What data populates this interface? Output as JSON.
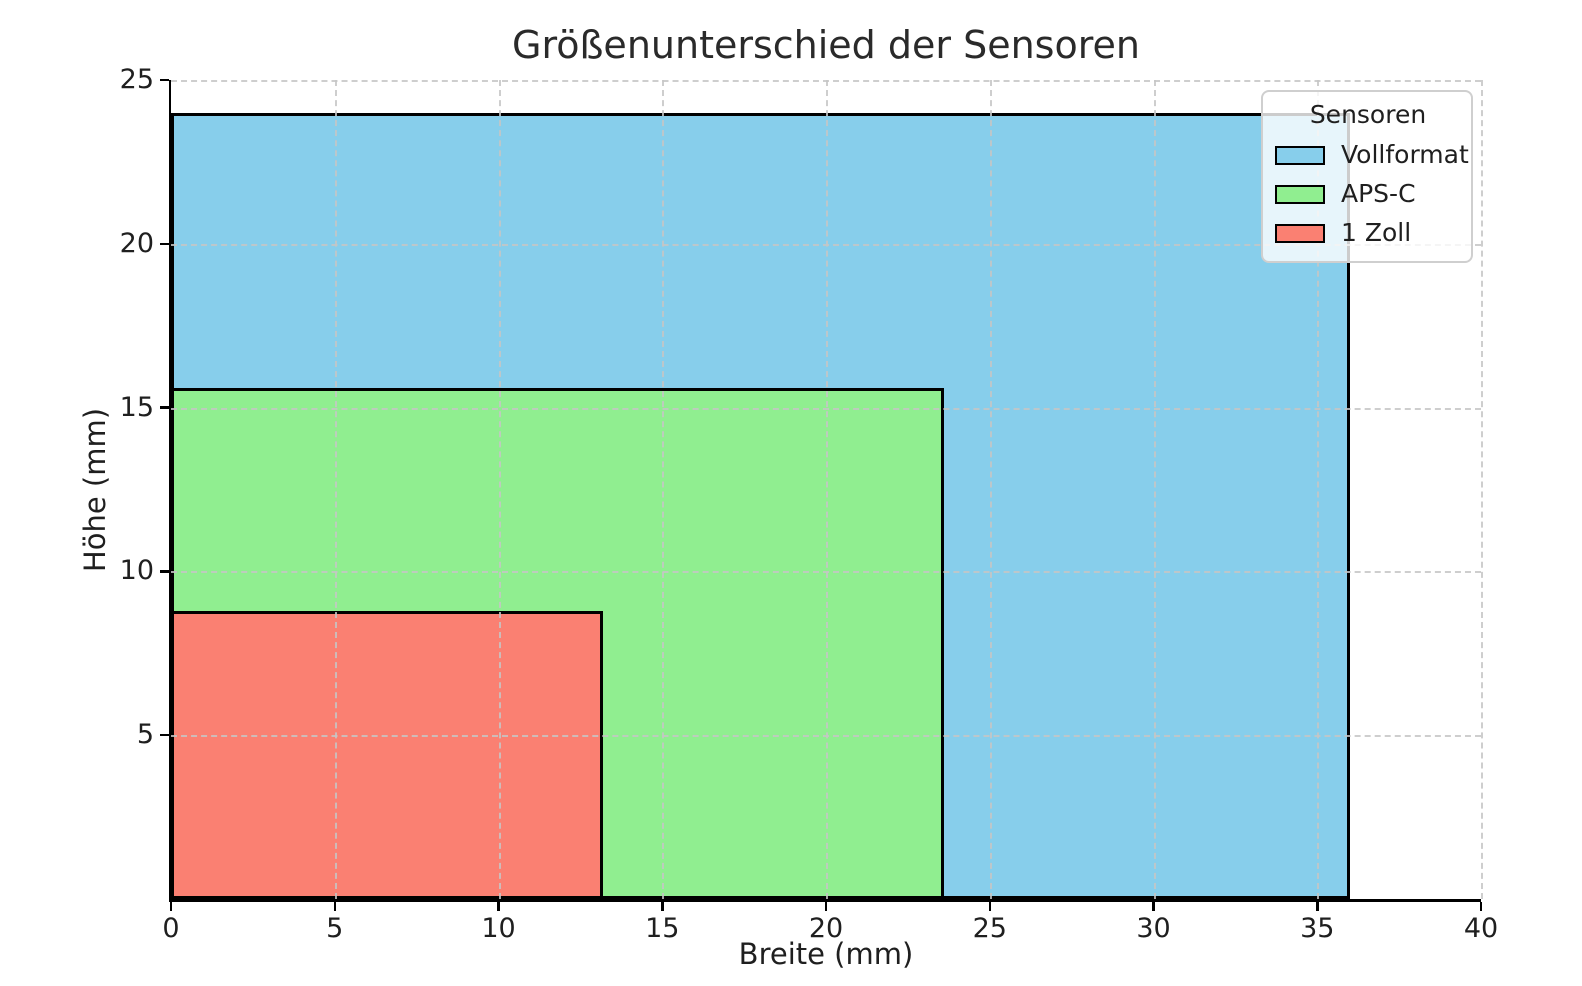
{
  "chart_data": {
    "type": "area",
    "subtype": "nested-rectangles",
    "title": "Größenunterschied der Sensoren",
    "xlabel": "Breite (mm)",
    "ylabel": "Höhe (mm)",
    "xlim": [
      0,
      40
    ],
    "ylim": [
      0,
      25
    ],
    "xticks": [
      0,
      5,
      10,
      15,
      20,
      25,
      30,
      35,
      40
    ],
    "yticks": [
      5,
      10,
      15,
      20,
      25
    ],
    "grid": true,
    "grid_style": "dashed",
    "grid_color": "#c6c6c6",
    "background": "#ffffff",
    "spines": {
      "left": true,
      "bottom": true,
      "top": false,
      "right": false
    },
    "legend": {
      "title": "Sensoren",
      "position": "upper right",
      "entries": [
        "Vollformat",
        "APS-C",
        "1 Zoll"
      ]
    },
    "series": [
      {
        "name": "Vollformat",
        "width_mm": 36.0,
        "height_mm": 24.0,
        "fill": "#87CEEB",
        "edge": "#000000"
      },
      {
        "name": "APS-C",
        "width_mm": 23.6,
        "height_mm": 15.6,
        "fill": "#90EE90",
        "edge": "#000000"
      },
      {
        "name": "1 Zoll",
        "width_mm": 13.2,
        "height_mm": 8.8,
        "fill": "#FA8072",
        "edge": "#000000"
      }
    ]
  }
}
